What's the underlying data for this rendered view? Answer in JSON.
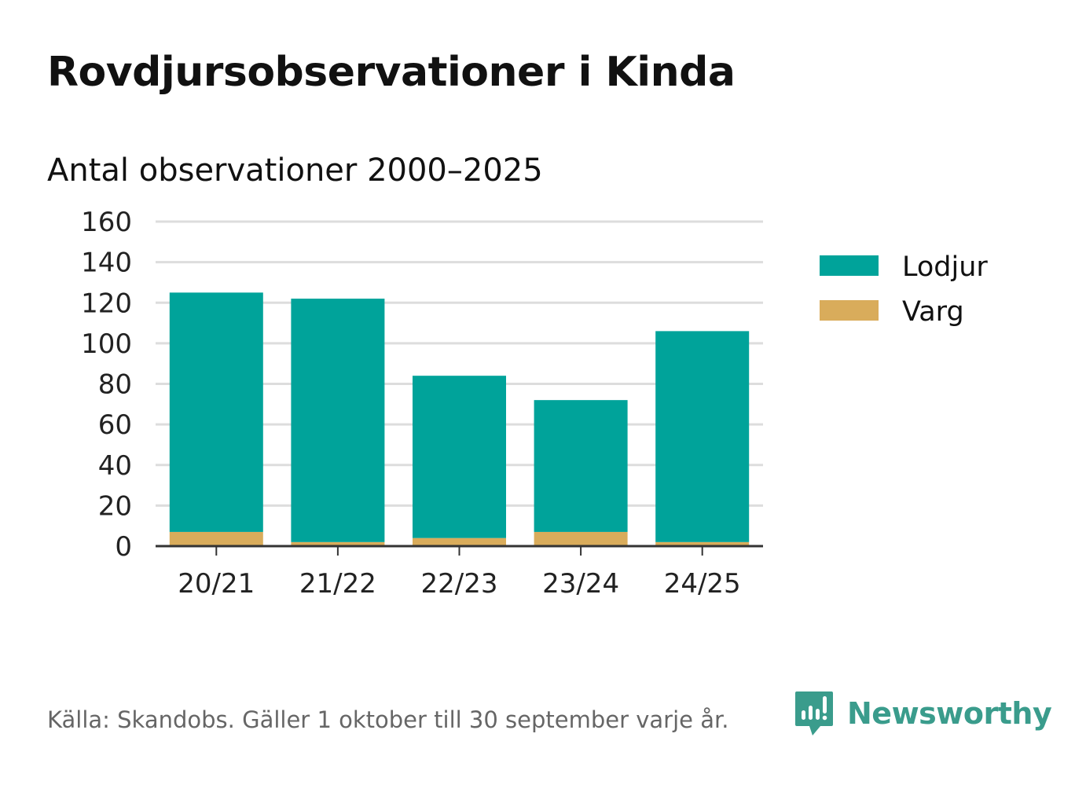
{
  "title": "Rovdjursobservationer i Kinda",
  "subtitle": "Antal observationer 2000–2025",
  "source": "Källa: Skandobs. Gäller 1 oktober till 30 september varje år.",
  "brand": "Newsworthy",
  "colors": {
    "lodjur": "#00a39a",
    "varg": "#d9ac5b",
    "grid": "#dddddd",
    "axis": "#333333",
    "brand": "#3a9c8c"
  },
  "chart_data": {
    "type": "bar",
    "stacked": true,
    "categories": [
      "20/21",
      "21/22",
      "22/23",
      "23/24",
      "24/25"
    ],
    "series": [
      {
        "name": "Varg",
        "values": [
          7,
          2,
          4,
          7,
          2
        ]
      },
      {
        "name": "Lodjur",
        "values": [
          118,
          120,
          80,
          65,
          104
        ]
      }
    ],
    "legend": [
      "Lodjur",
      "Varg"
    ],
    "legend_position": "right",
    "ylim": [
      0,
      160
    ],
    "yticks": [
      0,
      20,
      40,
      60,
      80,
      100,
      120,
      140,
      160
    ],
    "grid": true,
    "xlabel": "",
    "ylabel": ""
  }
}
